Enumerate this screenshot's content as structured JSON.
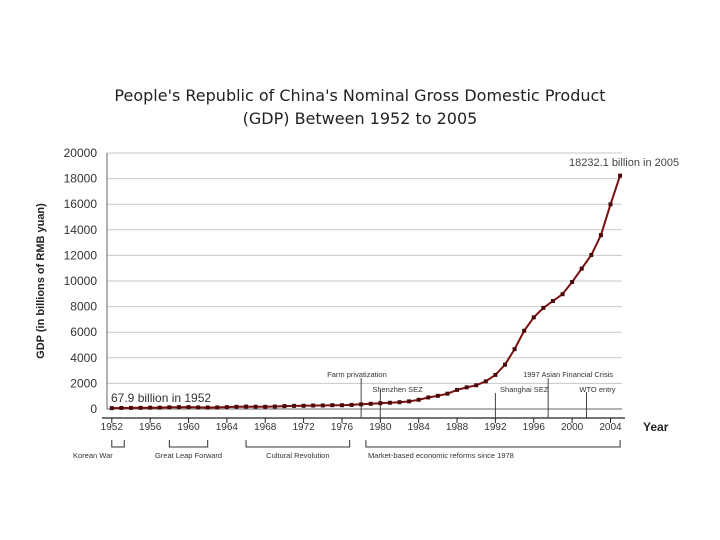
{
  "chart_data": {
    "type": "line",
    "title_line1": "People's Republic of China's Nominal Gross Domestic Product",
    "title_line2": "(GDP) Between 1952 to 2005",
    "ylabel": "GDP (in billions of RMB yuan)",
    "xlabel": "Year",
    "ylim": [
      0,
      20000
    ],
    "xlim": [
      1951.5,
      2005.2
    ],
    "y_ticks": [
      0,
      2000,
      4000,
      6000,
      8000,
      10000,
      12000,
      14000,
      16000,
      18000,
      20000
    ],
    "x_ticks": [
      1952,
      1956,
      1960,
      1964,
      1968,
      1972,
      1976,
      1980,
      1984,
      1988,
      1992,
      1996,
      2000,
      2004
    ],
    "grid": "horizontal",
    "series_color": "#7a1010",
    "x": [
      1952,
      1953,
      1954,
      1955,
      1956,
      1957,
      1958,
      1959,
      1960,
      1961,
      1962,
      1963,
      1964,
      1965,
      1966,
      1967,
      1968,
      1969,
      1970,
      1971,
      1972,
      1973,
      1974,
      1975,
      1976,
      1977,
      1978,
      1979,
      1980,
      1981,
      1982,
      1983,
      1984,
      1985,
      1986,
      1987,
      1988,
      1989,
      1990,
      1991,
      1992,
      1993,
      1994,
      1995,
      1996,
      1997,
      1998,
      1999,
      2000,
      2001,
      2002,
      2003,
      2004,
      2005
    ],
    "y": [
      67.9,
      82,
      86,
      91,
      103,
      107,
      131,
      144,
      146,
      122,
      115,
      123,
      145,
      172,
      187,
      177,
      172,
      193,
      225,
      243,
      252,
      272,
      276,
      299,
      294,
      320,
      365,
      406,
      455,
      489,
      532,
      596,
      721,
      902,
      1028,
      1196,
      1493,
      1691,
      1855,
      2162,
      2664,
      3463,
      4676,
      6113,
      7161,
      7900,
      8440,
      8968,
      9921,
      10966,
      12033,
      13582,
      15988,
      18232.1
    ],
    "annotations": {
      "start_label": "67.9 billion in 1952",
      "end_label": "18232.1 billion in 2005",
      "events": [
        {
          "label": "Farm privatization",
          "year": 1978
        },
        {
          "label": "Shenzhen SEZ",
          "year": 1980
        },
        {
          "label": "Shanghai SEZ",
          "year": 1992
        },
        {
          "label": "1997 Asian Financial Crisis",
          "year": 1997.5
        },
        {
          "label": "WTO entry",
          "year": 2001.5
        }
      ],
      "periods": [
        {
          "label": "Korean War",
          "start": 1952,
          "end": 1953.3
        },
        {
          "label": "Great Leap Forward",
          "start": 1958,
          "end": 1962
        },
        {
          "label": "Cultural Revolution",
          "start": 1966,
          "end": 1976.8
        },
        {
          "label": "Market-based economic reforms since 1978",
          "start": 1978.5,
          "end": 2005
        }
      ]
    }
  }
}
